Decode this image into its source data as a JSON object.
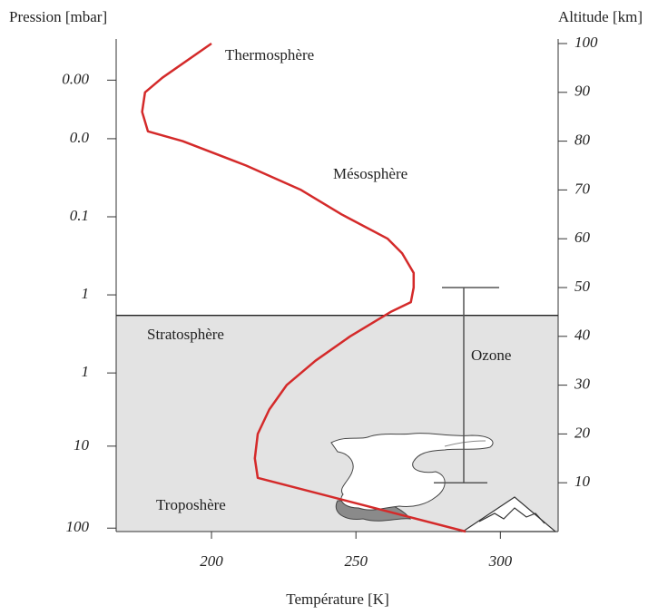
{
  "chart_data": {
    "type": "line",
    "x_label": "Température [K]",
    "y_label": "Altitude [km]",
    "y_left_label": "Pression [mbar]",
    "xlim": [
      167,
      320
    ],
    "xticks": [
      200,
      250,
      300
    ],
    "ylim": [
      0,
      100
    ],
    "yticks": [
      10,
      20,
      30,
      40,
      50,
      60,
      70,
      80,
      90,
      100
    ],
    "pressure_ticks": [
      {
        "value": 92.5,
        "label": "0.00"
      },
      {
        "value": 80.5,
        "label": "0.0"
      },
      {
        "value": 64.5,
        "label": "0.1"
      },
      {
        "value": 48.5,
        "label": "1"
      },
      {
        "value": 32.5,
        "label": "1"
      },
      {
        "value": 17.5,
        "label": "10"
      },
      {
        "value": 0.7,
        "label": "100"
      }
    ],
    "series": [
      {
        "color": "#d42a2a",
        "x": [
          288,
          216,
          215,
          216,
          220,
          226,
          236,
          248,
          262,
          269,
          270,
          270,
          266,
          261,
          245,
          231,
          212,
          190,
          178,
          176,
          177,
          183,
          200
        ],
        "y": [
          0,
          11,
          15,
          20,
          25,
          30,
          35,
          40,
          45,
          47,
          50,
          53,
          57,
          60,
          65,
          70,
          75,
          80,
          82,
          86,
          90,
          93,
          100
        ]
      }
    ],
    "shaded_region": {
      "ylim": [
        0,
        44.3
      ],
      "color": "#e3e3e3"
    },
    "ozone": {
      "label": "Ozone",
      "range": [
        10,
        50
      ]
    },
    "annotations": [
      "Thermosphère",
      "Mésosphère",
      "Stratosphère",
      "Troposhère"
    ]
  }
}
